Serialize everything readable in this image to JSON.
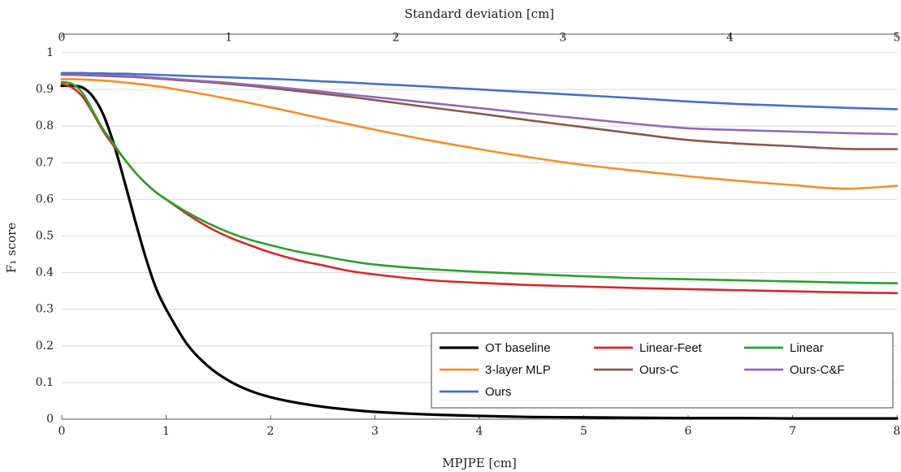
{
  "chart_data": {
    "type": "line",
    "xlabel": "MPJPE [cm]",
    "x2label": "Standard deviation [cm]",
    "ylabel": "F₁ score",
    "xlim": [
      0,
      8
    ],
    "x2lim": [
      0,
      5
    ],
    "ylim": [
      0,
      1
    ],
    "xticks": [
      "0",
      "1",
      "2",
      "3",
      "4",
      "5",
      "6",
      "7",
      "8"
    ],
    "x2ticks": [
      "0",
      "1",
      "2",
      "3",
      "4",
      "5"
    ],
    "yticks": [
      "0",
      "0.1",
      "0.2",
      "0.3",
      "0.4",
      "0.5",
      "0.6",
      "0.7",
      "0.8",
      "0.9",
      "1"
    ],
    "grid": "horizontal",
    "legend_position": "bottom-right",
    "x": [
      0,
      0.1,
      0.2,
      0.3,
      0.4,
      0.5,
      0.6,
      0.7,
      0.8,
      0.9,
      1.0,
      1.2,
      1.4,
      1.6,
      1.8,
      2.0,
      2.25,
      2.5,
      2.75,
      3.0,
      3.5,
      4.0,
      4.5,
      5.0,
      5.5,
      6.0,
      6.5,
      7.0,
      7.5,
      8.0
    ],
    "series": [
      {
        "name": "OT baseline",
        "color": "#000000",
        "values": [
          0.91,
          0.91,
          0.905,
          0.88,
          0.83,
          0.75,
          0.65,
          0.545,
          0.445,
          0.36,
          0.3,
          0.205,
          0.145,
          0.105,
          0.078,
          0.06,
          0.045,
          0.034,
          0.026,
          0.02,
          0.013,
          0.009,
          0.006,
          0.005,
          0.004,
          0.003,
          0.003,
          0.002,
          0.002,
          0.002
        ]
      },
      {
        "name": "Linear-Feet",
        "color": "#d62728",
        "values": [
          0.915,
          0.905,
          0.88,
          0.835,
          0.785,
          0.745,
          0.71,
          0.675,
          0.645,
          0.62,
          0.6,
          0.56,
          0.525,
          0.497,
          0.475,
          0.455,
          0.435,
          0.42,
          0.405,
          0.395,
          0.38,
          0.372,
          0.366,
          0.362,
          0.358,
          0.355,
          0.352,
          0.349,
          0.346,
          0.344
        ]
      },
      {
        "name": "Linear",
        "color": "#2ca02c",
        "values": [
          0.92,
          0.915,
          0.89,
          0.84,
          0.79,
          0.75,
          0.71,
          0.675,
          0.645,
          0.62,
          0.6,
          0.565,
          0.535,
          0.51,
          0.49,
          0.475,
          0.458,
          0.445,
          0.432,
          0.422,
          0.41,
          0.402,
          0.396,
          0.39,
          0.385,
          0.382,
          0.379,
          0.376,
          0.373,
          0.371
        ]
      },
      {
        "name": "3-layer MLP",
        "color": "#f28e2b",
        "values": [
          0.928,
          0.928,
          0.927,
          0.926,
          0.924,
          0.922,
          0.919,
          0.916,
          0.913,
          0.909,
          0.905,
          0.895,
          0.885,
          0.874,
          0.863,
          0.851,
          0.836,
          0.82,
          0.805,
          0.79,
          0.762,
          0.737,
          0.714,
          0.694,
          0.678,
          0.663,
          0.65,
          0.639,
          0.629,
          0.637
        ]
      },
      {
        "name": "Ours-C",
        "color": "#8c564b",
        "values": [
          0.94,
          0.94,
          0.939,
          0.938,
          0.937,
          0.936,
          0.935,
          0.934,
          0.932,
          0.93,
          0.928,
          0.924,
          0.92,
          0.915,
          0.91,
          0.904,
          0.896,
          0.888,
          0.88,
          0.871,
          0.852,
          0.834,
          0.815,
          0.797,
          0.779,
          0.762,
          0.752,
          0.745,
          0.738,
          0.737
        ]
      },
      {
        "name": "Ours-C&F",
        "color": "#9467bd",
        "values": [
          0.942,
          0.942,
          0.941,
          0.94,
          0.939,
          0.938,
          0.937,
          0.936,
          0.934,
          0.932,
          0.93,
          0.926,
          0.922,
          0.918,
          0.913,
          0.908,
          0.901,
          0.894,
          0.886,
          0.879,
          0.864,
          0.849,
          0.834,
          0.82,
          0.806,
          0.794,
          0.789,
          0.785,
          0.781,
          0.778
        ]
      },
      {
        "name": "Ours",
        "color": "#4472c4",
        "values": [
          0.945,
          0.945,
          0.945,
          0.944,
          0.944,
          0.943,
          0.943,
          0.942,
          0.941,
          0.94,
          0.939,
          0.937,
          0.935,
          0.933,
          0.931,
          0.929,
          0.926,
          0.922,
          0.919,
          0.915,
          0.908,
          0.9,
          0.892,
          0.884,
          0.876,
          0.867,
          0.86,
          0.855,
          0.85,
          0.846
        ]
      }
    ]
  }
}
